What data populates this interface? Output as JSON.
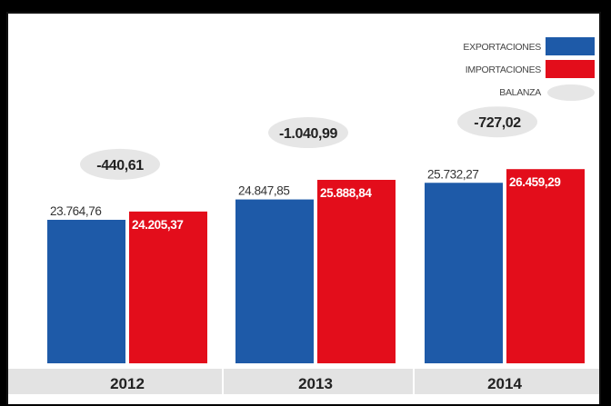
{
  "chart_data": {
    "type": "bar",
    "categories": [
      "2012",
      "2013",
      "2014"
    ],
    "series": [
      {
        "name": "EXPORTACIONES",
        "values": [
          23764.76,
          24847.85,
          25732.27
        ],
        "labels": [
          "23.764,76",
          "24.847,85",
          "25.732,27"
        ],
        "color": "#1e5aa8"
      },
      {
        "name": "IMPORTACIONES",
        "values": [
          24205.37,
          25888.84,
          26459.29
        ],
        "labels": [
          "24.205,37",
          "25.888,84",
          "26.459,29"
        ],
        "color": "#e30d1b"
      },
      {
        "name": "BALANZA",
        "values": [
          -440.61,
          -1040.99,
          -727.02
        ],
        "labels": [
          "-440,61",
          "-1.040,99",
          "-727,02"
        ],
        "color": "#e6e6e6"
      }
    ],
    "title": "",
    "xlabel": "",
    "ylabel": "",
    "legend": "top-right",
    "grid": false,
    "category_band_color": "#e3e3e3"
  }
}
